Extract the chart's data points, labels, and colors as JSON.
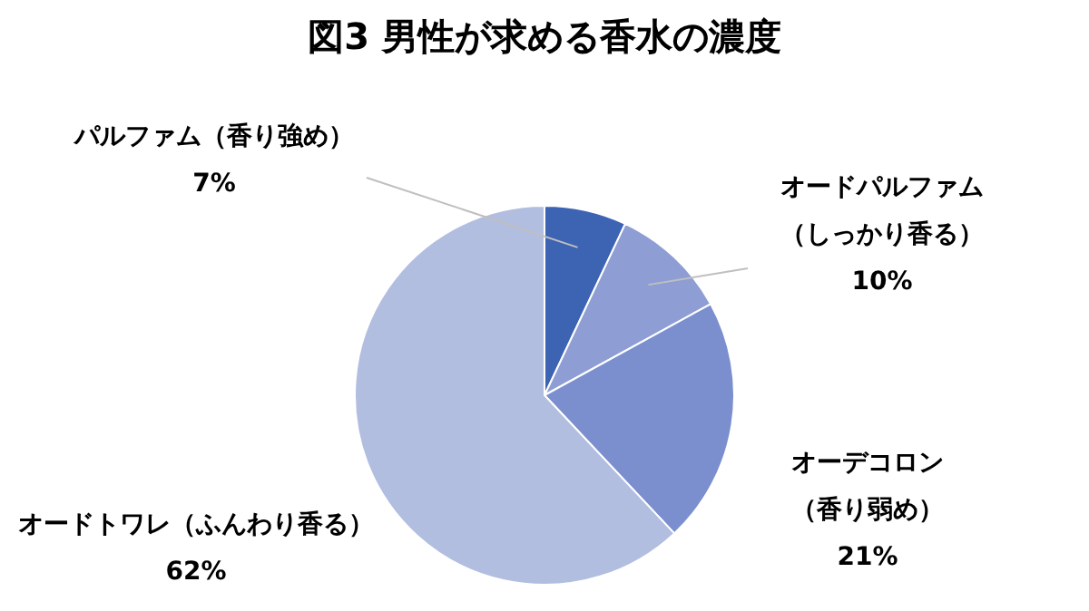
{
  "chart_data": {
    "type": "pie",
    "title": "図3 男性が求める香水の濃度",
    "categories": [
      "パルファム（香り強め）",
      "オードパルファム（しっかり香る）",
      "オーデコロン（香り弱め）",
      "オードトワレ（ふんわり香る）"
    ],
    "values": [
      7,
      10,
      21,
      62
    ],
    "value_labels": [
      "7%",
      "10%",
      "21%",
      "62%"
    ],
    "colors": [
      "#3d63b3",
      "#8e9ed4",
      "#7b8fcf",
      "#b2bee0"
    ],
    "legend": false
  }
}
